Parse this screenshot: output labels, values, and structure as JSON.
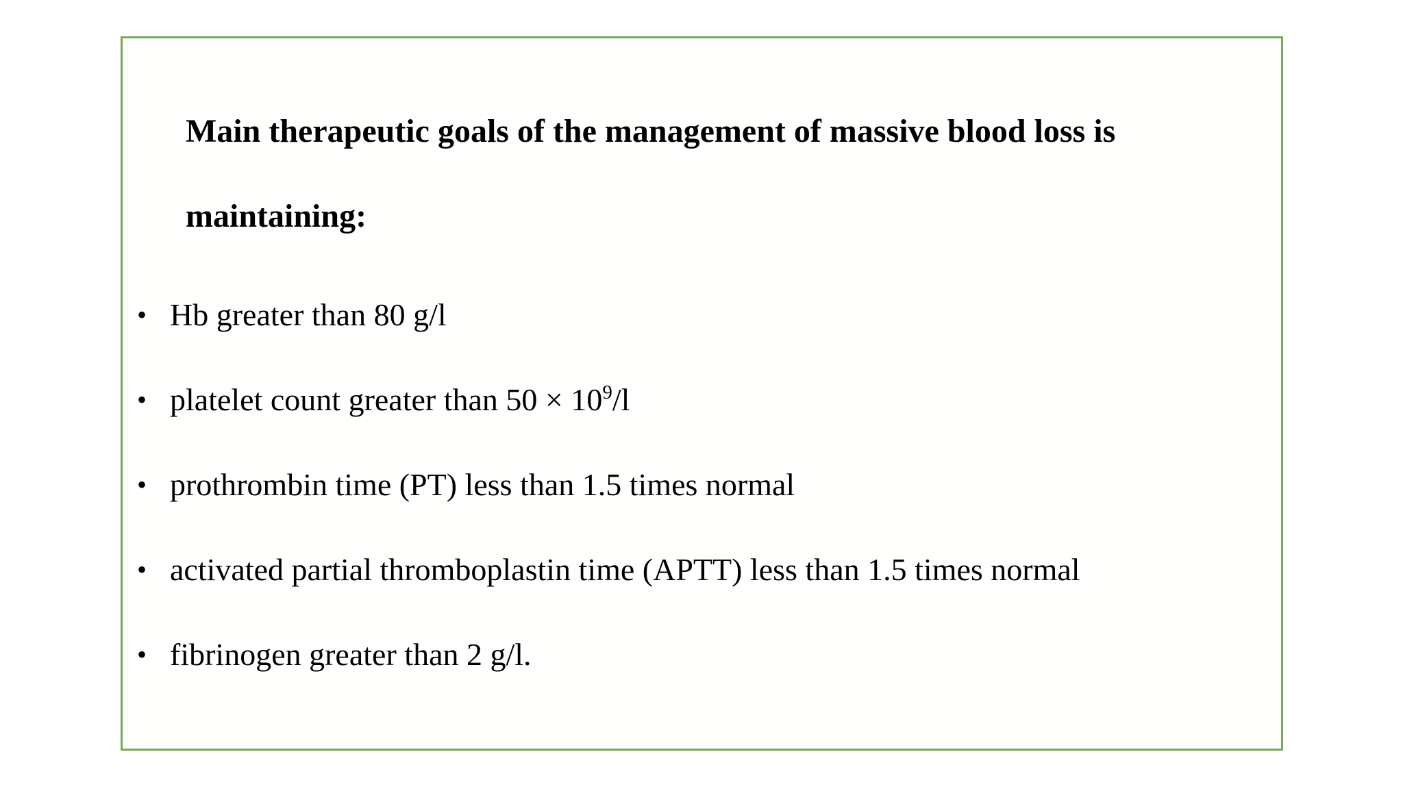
{
  "slide": {
    "title": {
      "line1": "Main therapeutic goals of the management of massive blood loss is",
      "line2": "maintaining:"
    },
    "bullet_char": "•",
    "bullets": [
      {
        "text": "Hb greater than 80 g/l"
      },
      {
        "prefix": "platelet count greater than 50 × 10",
        "superscript": "9",
        "suffix": "/l"
      },
      {
        "text": "prothrombin time (PT) less than 1.5 times normal"
      },
      {
        "text": "activated partial thromboplastin time (APTT) less than 1.5 times normal"
      },
      {
        "text": "fibrinogen greater than 2 g/l."
      }
    ],
    "colors": {
      "border": "#76a85a",
      "text": "#000000",
      "background": "#ffffff"
    }
  }
}
